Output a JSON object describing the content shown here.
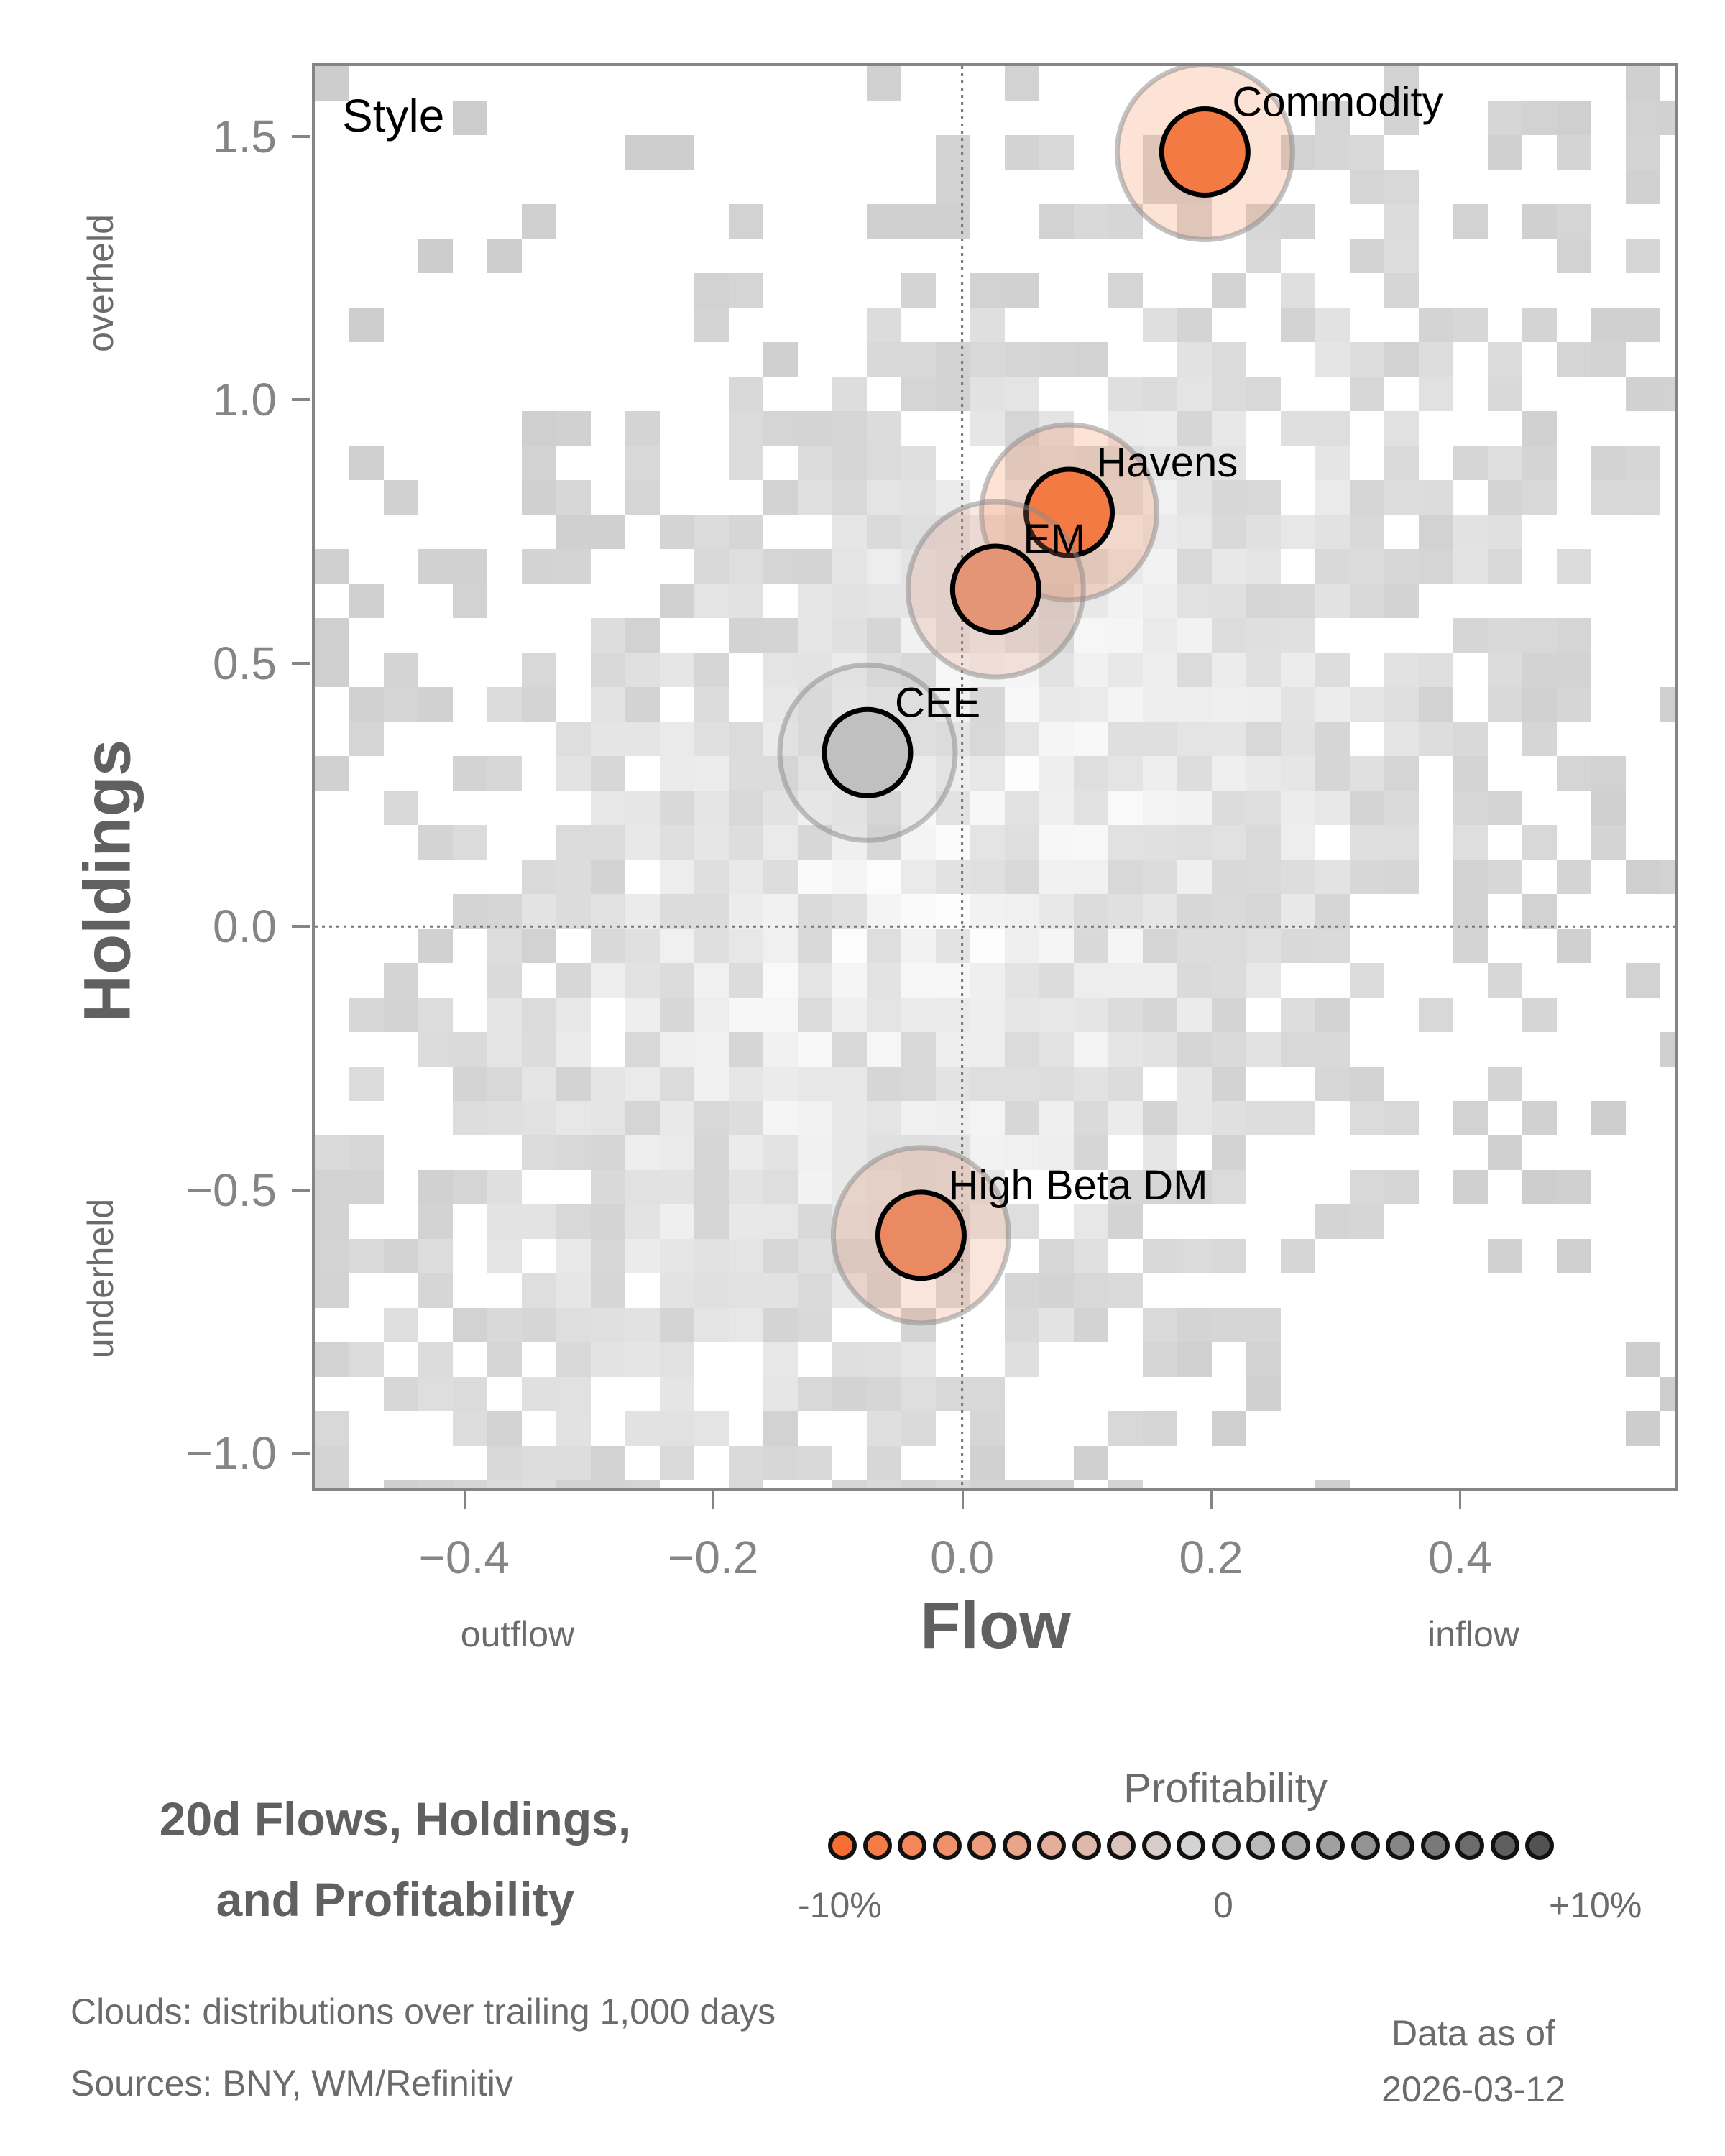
{
  "chart_data": {
    "type": "scatter",
    "title": "20d Flows, Holdings, and Profitability",
    "panel_label": "Style",
    "xlabel": "Flow",
    "ylabel": "Holdings",
    "x_side_labels": {
      "left": "outflow",
      "right": "inflow"
    },
    "y_side_labels": {
      "top": "overheld",
      "bottom": "underheld"
    },
    "xlim": [
      -0.52,
      0.573
    ],
    "ylim": [
      -1.065,
      1.633
    ],
    "xticks": [
      -0.4,
      -0.2,
      0.0,
      0.2,
      0.4
    ],
    "xtick_labels": [
      "−0.4",
      "−0.2",
      "0.0",
      "0.2",
      "0.4"
    ],
    "yticks": [
      1.5,
      1.0,
      0.5,
      0.0,
      -0.5,
      -1.0
    ],
    "ytick_labels": [
      "1.5",
      "1.0",
      "0.5",
      "0.0",
      "−0.5",
      "−1.0"
    ],
    "reference_lines": {
      "x": 0.0,
      "y": 0.0,
      "style": "dotted"
    },
    "grid": false,
    "points": [
      {
        "name": "Commodity",
        "flow": 0.195,
        "holdings": 1.47,
        "profitability_pct": -9,
        "color": "#f47a44"
      },
      {
        "name": "Havens",
        "flow": 0.086,
        "holdings": 0.786,
        "profitability_pct": -9,
        "color": "#f47a44"
      },
      {
        "name": "EM",
        "flow": 0.027,
        "holdings": 0.64,
        "profitability_pct": -6,
        "color": "#e49576"
      },
      {
        "name": "CEE",
        "flow": -0.076,
        "holdings": 0.33,
        "profitability_pct": 1,
        "color": "#c0c0c0"
      },
      {
        "name": "High Beta DM",
        "flow": -0.033,
        "holdings": -0.586,
        "profitability_pct": -7,
        "color": "#ea8a62"
      }
    ],
    "background": "2D histogram cloud (greyscale) of trailing 1,000 day distributions",
    "colorbar": {
      "title": "Profitability",
      "min_label": "-10%",
      "mid_label": "0",
      "max_label": "+10%",
      "swatches": [
        "#f76e35",
        "#f47b47",
        "#f38759",
        "#f0916b",
        "#ec9b7c",
        "#e8a58c",
        "#e3af9c",
        "#dfb8ab",
        "#dac3ba",
        "#d6ccc8",
        "#d3d3d3",
        "#c7c7c7",
        "#bababa",
        "#adadad",
        "#a0a0a0",
        "#939393",
        "#868686",
        "#797979",
        "#6c6c6c",
        "#5f5f5f",
        "#525252"
      ]
    }
  },
  "footer": {
    "title_line1": "20d Flows, Holdings,",
    "title_line2": "and Profitability",
    "note_clouds": "Clouds:  distributions over trailing 1,000 days",
    "note_sources": "Sources:  BNY, WM/Refinitiv",
    "asof_line1": "Data as of",
    "asof_line2": "2026-03-12"
  }
}
